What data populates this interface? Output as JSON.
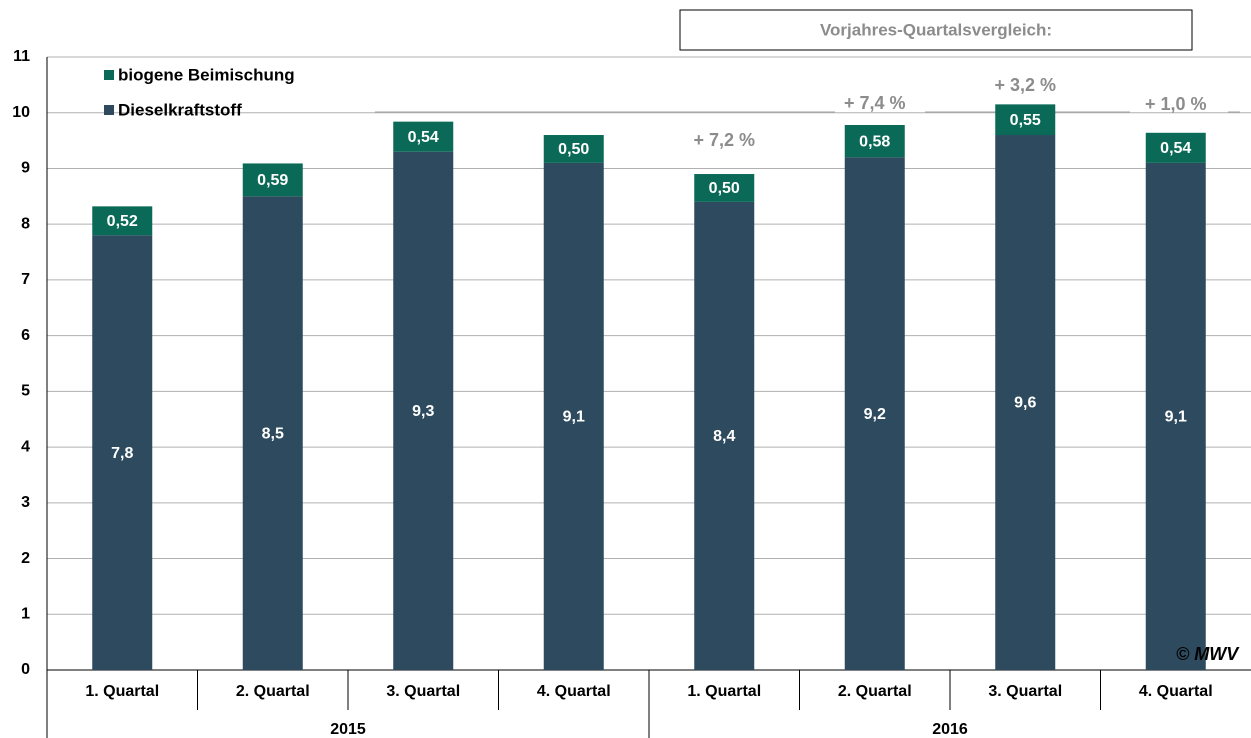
{
  "chart_data": {
    "type": "stacked_bar",
    "categories": [
      "1. Quartal",
      "2. Quartal",
      "3. Quartal",
      "4. Quartal",
      "1. Quartal",
      "2. Quartal",
      "3. Quartal",
      "4. Quartal"
    ],
    "groups": [
      "2015",
      "2016"
    ],
    "series": [
      {
        "name": "Dieselkraftstoff",
        "color": "#2d4a5e",
        "values": [
          7.8,
          8.5,
          9.3,
          9.1,
          8.4,
          9.2,
          9.6,
          9.1
        ],
        "value_labels": [
          "7,8",
          "8,5",
          "9,3",
          "9,1",
          "8,4",
          "9,2",
          "9,6",
          "9,1"
        ]
      },
      {
        "name": "biogene Beimischung",
        "color": "#0b6a57",
        "values": [
          0.52,
          0.59,
          0.54,
          0.5,
          0.5,
          0.58,
          0.55,
          0.54
        ],
        "value_labels": [
          "0,52",
          "0,59",
          "0,54",
          "0,50",
          "0,50",
          "0,58",
          "0,55",
          "0,54"
        ]
      }
    ],
    "ylim": [
      0,
      11
    ],
    "yticks": [
      0,
      1,
      2,
      3,
      4,
      5,
      6,
      7,
      8,
      9,
      10,
      11
    ],
    "grid": true,
    "comparison": {
      "title": "Vorjahres-Quartalsvergleich:",
      "labels": [
        "+ 7,2 %",
        "+ 7,4 %",
        "+ 3,2 %",
        "+ 1,0 %"
      ]
    },
    "copyright": "© MWV"
  }
}
